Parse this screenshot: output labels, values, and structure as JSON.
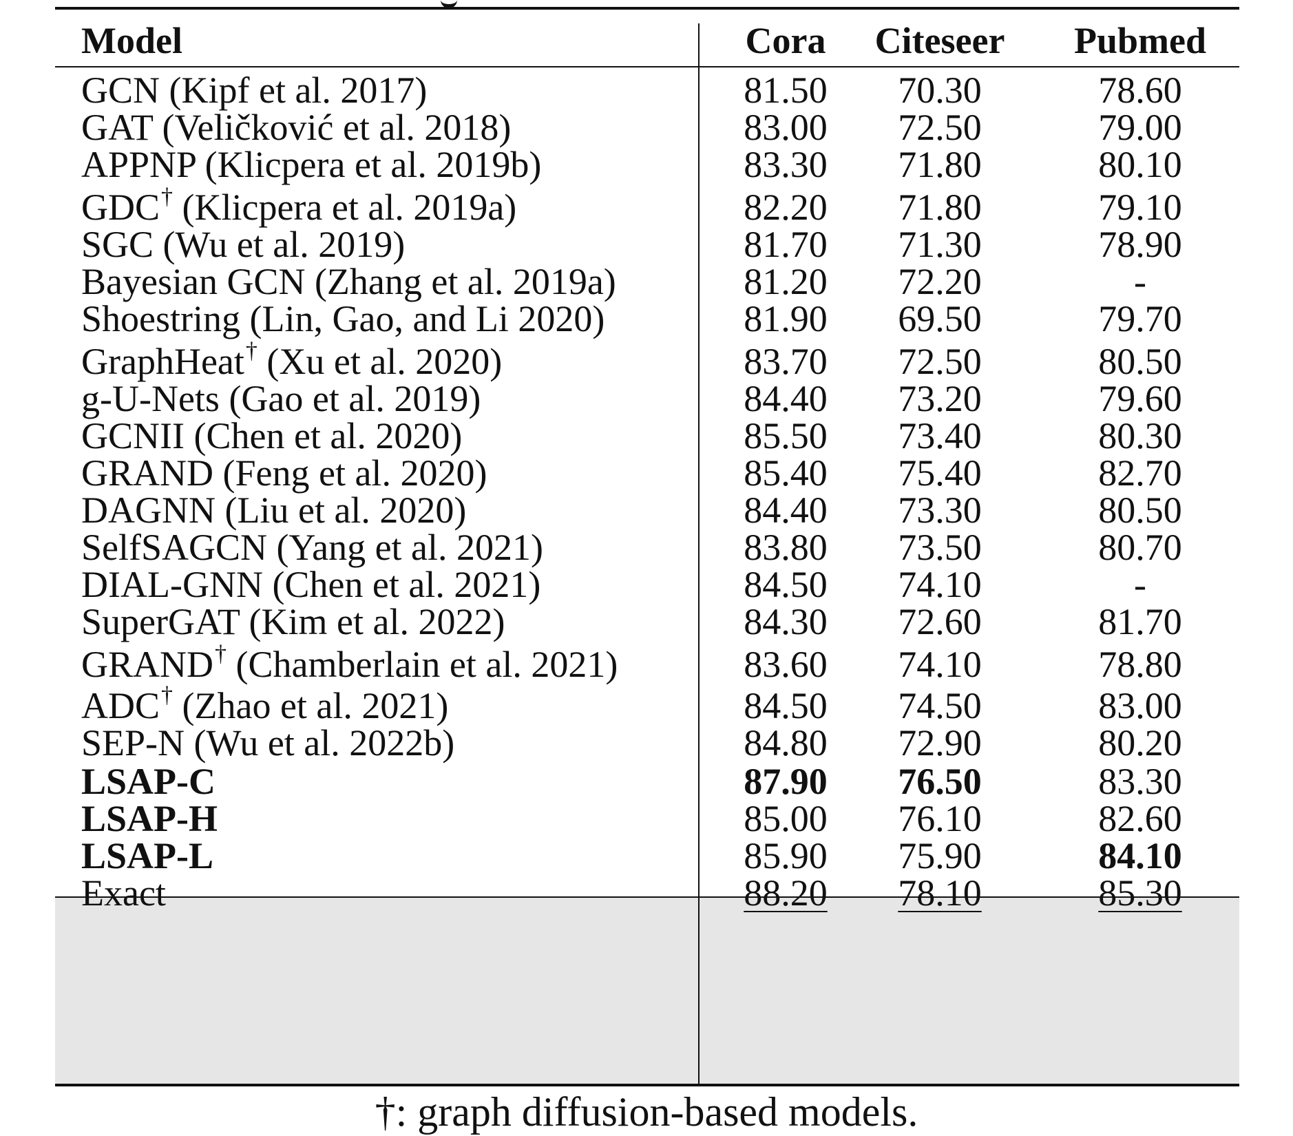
{
  "table": {
    "headers": {
      "model": "Model",
      "cora": "Cora",
      "citeseer": "Citeseer",
      "pubmed": "Pubmed"
    },
    "rows": [
      {
        "name": "GCN",
        "ref": " (Kipf et al. 2017)",
        "dagger": false,
        "cora": "81.50",
        "citeseer": "70.30",
        "pubmed": "78.60",
        "group": "baseline"
      },
      {
        "name": "GAT",
        "ref": " (Veličković et al. 2018)",
        "dagger": false,
        "cora": "83.00",
        "citeseer": "72.50",
        "pubmed": "79.00",
        "group": "baseline"
      },
      {
        "name": "APPNP",
        "ref": " (Klicpera et al. 2019b)",
        "dagger": false,
        "cora": "83.30",
        "citeseer": "71.80",
        "pubmed": "80.10",
        "group": "baseline"
      },
      {
        "name": "GDC",
        "ref": " (Klicpera et al. 2019a)",
        "dagger": true,
        "cora": "82.20",
        "citeseer": "71.80",
        "pubmed": "79.10",
        "group": "baseline"
      },
      {
        "name": "SGC",
        "ref": " (Wu et al. 2019)",
        "dagger": false,
        "cora": "81.70",
        "citeseer": "71.30",
        "pubmed": "78.90",
        "group": "baseline"
      },
      {
        "name": "Bayesian GCN",
        "ref": " (Zhang et al. 2019a)",
        "dagger": false,
        "cora": "81.20",
        "citeseer": "72.20",
        "pubmed": "-",
        "group": "baseline"
      },
      {
        "name": "Shoestring",
        "ref": " (Lin, Gao, and Li 2020)",
        "dagger": false,
        "cora": "81.90",
        "citeseer": "69.50",
        "pubmed": "79.70",
        "group": "baseline"
      },
      {
        "name": "GraphHeat",
        "ref": " (Xu et al. 2020)",
        "dagger": true,
        "cora": "83.70",
        "citeseer": "72.50",
        "pubmed": "80.50",
        "group": "baseline"
      },
      {
        "name": "g-U-Nets",
        "ref": " (Gao et al. 2019)",
        "dagger": false,
        "cora": "84.40",
        "citeseer": "73.20",
        "pubmed": "79.60",
        "group": "baseline"
      },
      {
        "name": "GCNII",
        "ref": " (Chen et al. 2020)",
        "dagger": false,
        "cora": "85.50",
        "citeseer": "73.40",
        "pubmed": "80.30",
        "group": "baseline"
      },
      {
        "name": "GRAND",
        "ref": " (Feng et al. 2020)",
        "dagger": false,
        "cora": "85.40",
        "citeseer": "75.40",
        "pubmed": "82.70",
        "group": "baseline"
      },
      {
        "name": "DAGNN",
        "ref": " (Liu et al. 2020)",
        "dagger": false,
        "cora": "84.40",
        "citeseer": "73.30",
        "pubmed": "80.50",
        "group": "baseline"
      },
      {
        "name": "SelfSAGCN",
        "ref": " (Yang et al. 2021)",
        "dagger": false,
        "cora": "83.80",
        "citeseer": "73.50",
        "pubmed": "80.70",
        "group": "baseline"
      },
      {
        "name": "DIAL-GNN",
        "ref": " (Chen et al. 2021)",
        "dagger": false,
        "cora": "84.50",
        "citeseer": "74.10",
        "pubmed": "-",
        "group": "baseline"
      },
      {
        "name": "SuperGAT",
        "ref": " (Kim et al. 2022)",
        "dagger": false,
        "cora": "84.30",
        "citeseer": "72.60",
        "pubmed": "81.70",
        "group": "baseline"
      },
      {
        "name": "GRAND",
        "ref": " (Chamberlain et al. 2021)",
        "dagger": true,
        "cora": "83.60",
        "citeseer": "74.10",
        "pubmed": "78.80",
        "group": "baseline"
      },
      {
        "name": "ADC",
        "ref": " (Zhao et al. 2021)",
        "dagger": true,
        "cora": "84.50",
        "citeseer": "74.50",
        "pubmed": "83.00",
        "group": "baseline"
      },
      {
        "name": "SEP-N",
        "ref": " (Wu et al. 2022b)",
        "dagger": false,
        "cora": "84.80",
        "citeseer": "72.90",
        "pubmed": "80.20",
        "group": "baseline"
      },
      {
        "name": "LSAP-C",
        "ref": "",
        "dagger": false,
        "cora": "87.90",
        "citeseer": "76.50",
        "pubmed": "83.30",
        "group": "ours",
        "bold_name": true,
        "bold": [
          "cora",
          "citeseer"
        ],
        "underline": []
      },
      {
        "name": "LSAP-H",
        "ref": "",
        "dagger": false,
        "cora": "85.00",
        "citeseer": "76.10",
        "pubmed": "82.60",
        "group": "ours",
        "bold_name": true,
        "bold": [],
        "underline": []
      },
      {
        "name": "LSAP-L",
        "ref": "",
        "dagger": false,
        "cora": "85.90",
        "citeseer": "75.90",
        "pubmed": "84.10",
        "group": "ours",
        "bold_name": true,
        "bold": [
          "pubmed"
        ],
        "underline": []
      },
      {
        "name": "Exact",
        "ref": "",
        "dagger": false,
        "cora": "88.20",
        "citeseer": "78.10",
        "pubmed": "85.30",
        "group": "ours",
        "bold_name": false,
        "bold": [],
        "underline": [
          "cora",
          "citeseer",
          "pubmed"
        ]
      }
    ],
    "dagger_symbol": "†",
    "shaded_group_color": "#e6e6e6"
  },
  "footnote": "†: graph diffusion-based models."
}
